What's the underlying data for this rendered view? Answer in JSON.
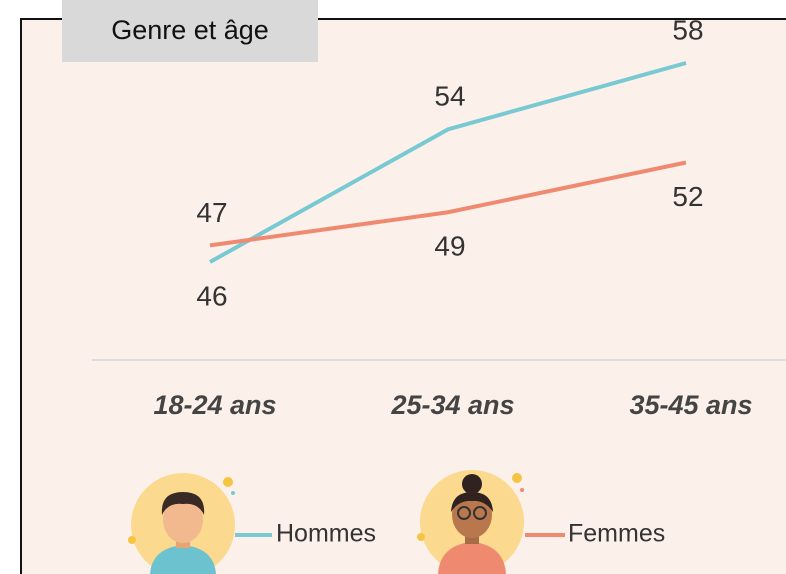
{
  "chart_data": {
    "type": "line",
    "title": "Genre et âge",
    "categories": [
      "18-24 ans",
      "25-34 ans",
      "35-45 ans"
    ],
    "series": [
      {
        "name": "Hommes",
        "color": "#78c9d2",
        "values": [
          46,
          54,
          58
        ]
      },
      {
        "name": "Femmes",
        "color": "#ef8a70",
        "values": [
          47,
          49,
          52
        ]
      }
    ]
  }
}
